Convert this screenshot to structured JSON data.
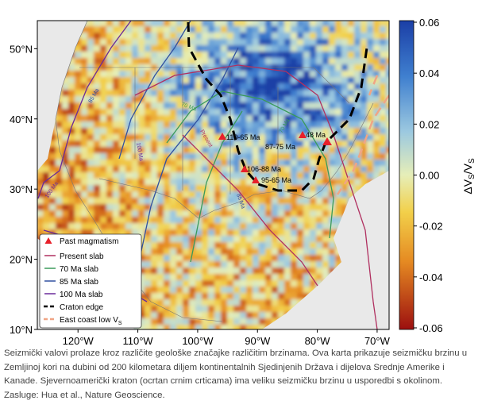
{
  "map": {
    "lonlim": [
      -126.8,
      -68
    ],
    "latlim": [
      10,
      54
    ],
    "lon_ticks": [
      {
        "value": -120,
        "label": "120°W"
      },
      {
        "value": -110,
        "label": "110°W"
      },
      {
        "value": -100,
        "label": "100°W"
      },
      {
        "value": -90,
        "label": "90°W"
      },
      {
        "value": -80,
        "label": "80°W"
      },
      {
        "value": -70,
        "label": "70°W"
      }
    ],
    "lat_ticks": [
      {
        "value": 50,
        "label": "50°N"
      },
      {
        "value": 40,
        "label": "40°N"
      },
      {
        "value": 30,
        "label": "30°N"
      },
      {
        "value": 20,
        "label": "20°N"
      },
      {
        "value": 10,
        "label": "10°N"
      }
    ],
    "magmatism_labels": [
      "110-65 Ma",
      "87-75 Ma",
      "48 Ma",
      "106-88 Ma",
      "95-65 Ma"
    ],
    "slab_labels": [
      "100 Ma",
      "85 Ma",
      "70 Ma",
      "Present",
      "100 Ma",
      "85 Ma",
      "70 Ma"
    ],
    "legend": {
      "past_magmatism": "Past magmatism",
      "present_slab": "Present slab",
      "slab_70": "70 Ma slab",
      "slab_85": "85 Ma slab",
      "slab_100": "100 Ma slab",
      "craton_edge": "Craton edge",
      "east_coast": "East coast low V",
      "east_coast_sub": "S"
    }
  },
  "colorbar": {
    "label": [
      "ΔV",
      "S",
      "/V",
      "S"
    ],
    "lim": [
      -0.06,
      0.06
    ],
    "ticks": [
      0.06,
      0.04,
      0.02,
      {
        "value": 0,
        "label": "0.00"
      },
      -0.02,
      -0.04,
      -0.06
    ]
  },
  "caption": "Seizmički valovi prolaze kroz različite geološke značajke različitim brzinama. Ova karta prikazuje seizmičku brzinu u Zemljinoj kori na dubini od 200 kilometara diljem kontinentalnih Sjedinjenih Država i dijelova Srednje Amerike i Kanade. Sjevernoamerički kraton (ocrtan crnim crticama) ima veliku seizmičku brzinu u usporedbi s okolinom. Zasluge: Hua et al., Nature Geoscience."
}
